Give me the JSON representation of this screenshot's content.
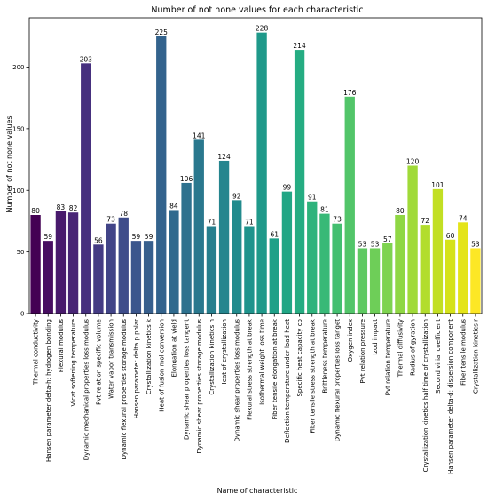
{
  "chart_data": {
    "type": "bar",
    "title": "Number of not none values for each characteristic",
    "xlabel": "Name of characteristic",
    "ylabel": "Number of not none values",
    "ylim": [
      0,
      240
    ],
    "yticks": [
      0,
      50,
      100,
      150,
      200
    ],
    "grid": false,
    "colormap": "viridis",
    "categories": [
      "Thermal conductivity",
      "Hansen parameter delta-h: hydrogen bonding",
      "Flexural modulus",
      "Vicat softening temperature",
      "Dynamic mechanical properties loss modulus",
      "Pvt relation specific volume",
      "Water vapor transmission",
      "Dynamic flexural properties storage modulus",
      "Hansen parameter delta p polar",
      "Crystallization kinetics k",
      "Heat of fusion mol conversion",
      "Elongation at yield",
      "Dynamic shear properties loss tangent",
      "Dynamic shear properties storage modulus",
      "Crystallization kinetics n",
      "Heat of crystallization",
      "Dynamic shear properties loss modulus",
      "Flexural stress strength at break",
      "Isothermal weight loss time",
      "Fiber tensile elongation at break",
      "Deflection temperature under load heat",
      "Specific heat capacity cp",
      "Fiber tensile stress strength at break",
      "Brittleness temperature",
      "Dynamic flexural properties loss tanget",
      "Oxygen index",
      "Pvt relation pressure",
      "Izod impact",
      "Pvt relation temperature",
      "Thermal diffusivity",
      "Radius of gyration",
      "Crystallization kinetics half time of crystallization",
      "Second virial coefficient",
      "Hansen parameter delta-d: dispersion component",
      "Fiber tensile modulus",
      "Crystallization kinetics r"
    ],
    "values": [
      80,
      59,
      83,
      82,
      203,
      56,
      73,
      78,
      59,
      59,
      225,
      84,
      106,
      141,
      71,
      124,
      92,
      71,
      228,
      61,
      99,
      214,
      91,
      81,
      73,
      176,
      53,
      53,
      57,
      80,
      120,
      72,
      101,
      60,
      74,
      53
    ],
    "colors": [
      "#440154",
      "#470e61",
      "#481a6c",
      "#482575",
      "#46307e",
      "#443b84",
      "#414487",
      "#3e4c8a",
      "#3b568d",
      "#375f8d",
      "#33638d",
      "#306a8e",
      "#2d718e",
      "#2a788e",
      "#277f8e",
      "#25858e",
      "#228b8d",
      "#1f938c",
      "#1f998a",
      "#1fa088",
      "#21a685",
      "#25ac82",
      "#2eb37c",
      "#38b977",
      "#44bf70",
      "#52c569",
      "#5ec962",
      "#6ece58",
      "#7ed34f",
      "#8fd744",
      "#a0da39",
      "#b2dd2d",
      "#c2df23",
      "#d5e21a",
      "#e4e419",
      "#fde725"
    ]
  }
}
